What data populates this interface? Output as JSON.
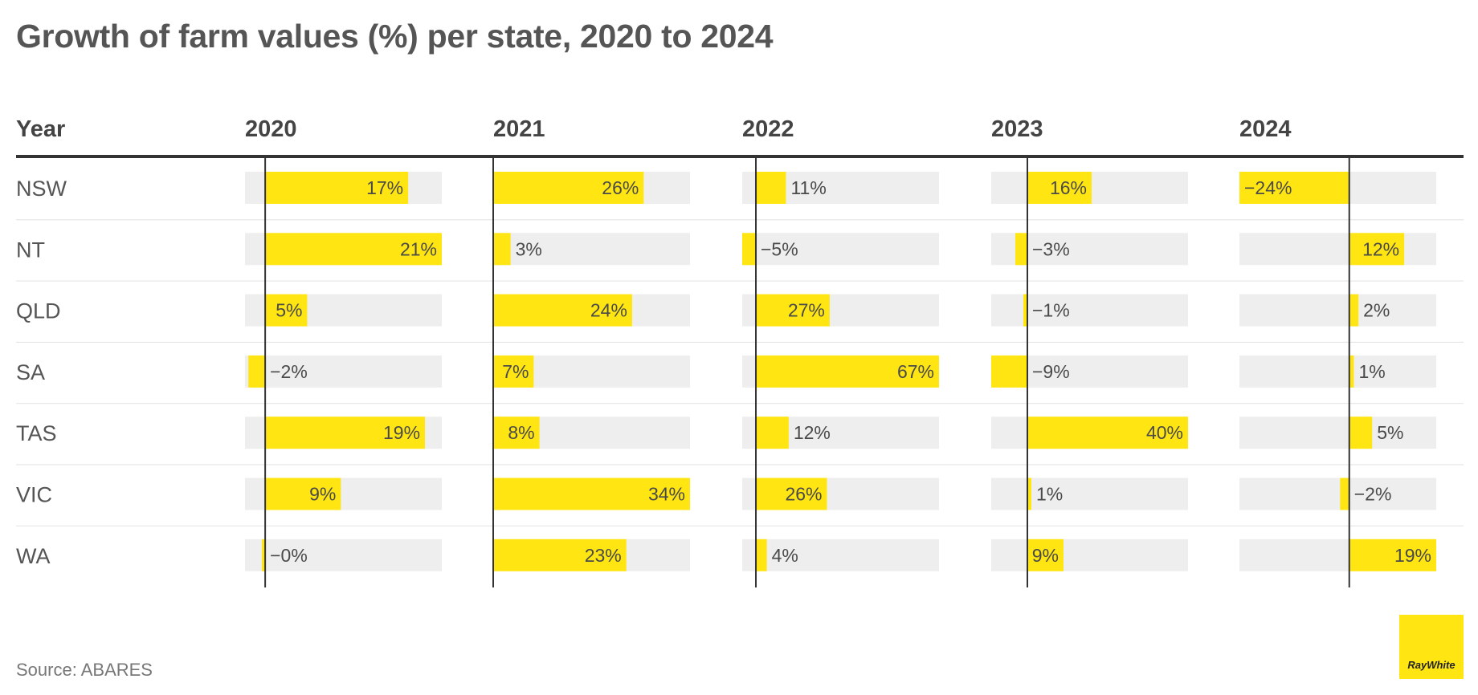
{
  "title": "Growth of farm values (%) per state, 2020 to 2024",
  "source": "Source: ABARES",
  "logo_text": "RayWhite",
  "colors": {
    "bar": "#FFE512",
    "track": "#EEEEEE",
    "text": "#4a4a4a",
    "rule": "#333333"
  },
  "chart_data": {
    "type": "bar",
    "row_header": "Year",
    "years": [
      "2020",
      "2021",
      "2022",
      "2023",
      "2024"
    ],
    "states": [
      "NSW",
      "NT",
      "QLD",
      "SA",
      "TAS",
      "VIC",
      "WA"
    ],
    "values": [
      [
        17,
        26,
        11,
        16,
        -24
      ],
      [
        21,
        3,
        -5,
        -3,
        12
      ],
      [
        5,
        24,
        27,
        -1,
        2
      ],
      [
        -2,
        7,
        67,
        -9,
        1
      ],
      [
        19,
        8,
        12,
        40,
        5
      ],
      [
        9,
        34,
        26,
        1,
        -2
      ],
      [
        -0.4,
        23,
        4,
        9,
        19
      ]
    ],
    "labels": [
      [
        "17%",
        "26%",
        "11%",
        "16%",
        "−24%"
      ],
      [
        "21%",
        "3%",
        "−5%",
        "−3%",
        "12%"
      ],
      [
        "5%",
        "24%",
        "27%",
        "−1%",
        "2%"
      ],
      [
        "−2%",
        "7%",
        "67%",
        "−9%",
        "1%"
      ],
      [
        "19%",
        "8%",
        "12%",
        "40%",
        "5%"
      ],
      [
        "9%",
        "34%",
        "26%",
        "1%",
        "−2%"
      ],
      [
        "−0%",
        "23%",
        "4%",
        "9%",
        "19%"
      ]
    ],
    "column_ranges": [
      [
        -2.4,
        21
      ],
      [
        0,
        34
      ],
      [
        -5,
        67
      ],
      [
        -9,
        40
      ],
      [
        -24,
        19
      ]
    ]
  }
}
